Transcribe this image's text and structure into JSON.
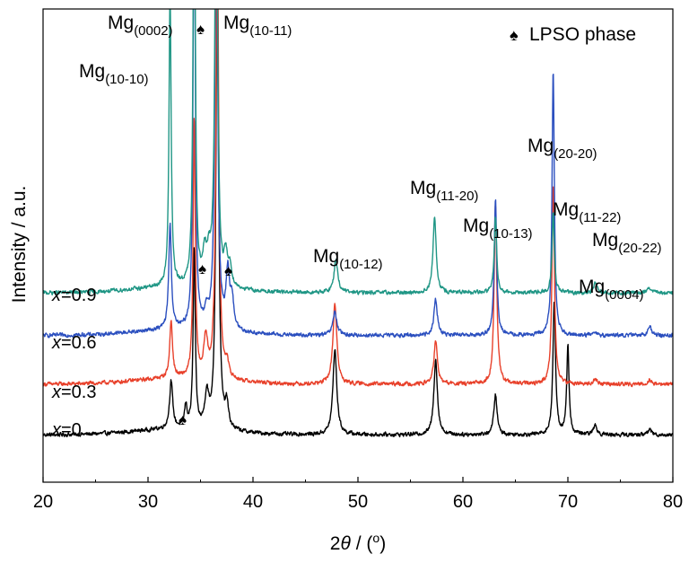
{
  "chart_data": {
    "type": "line",
    "title": "",
    "xlabel_prefix": "2",
    "xlabel_var": "θ",
    "xlabel_suffix": " / (",
    "xlabel_deg": "o",
    "xlabel_close": ")",
    "ylabel": "Intensity / a.u.",
    "xlim": [
      20,
      80
    ],
    "x_ticks": [
      "20",
      "30",
      "40",
      "50",
      "60",
      "70",
      "80"
    ],
    "y_ticks_shown": false,
    "legend": {
      "symbol": "♠",
      "text": "LPSO phase",
      "position": "top-right"
    },
    "series": [
      {
        "name": "x=0",
        "name_var": "x",
        "name_value": "=0",
        "color": "#000000",
        "baseline": 0.1,
        "peaks": [
          [
            32.2,
            0.1,
            0.18
          ],
          [
            33.6,
            0.045,
            0.15
          ],
          [
            34.4,
            0.38,
            0.12
          ],
          [
            35.6,
            0.07,
            0.22
          ],
          [
            36.6,
            1.0,
            0.15
          ],
          [
            37.5,
            0.05,
            0.18
          ],
          [
            47.8,
            0.18,
            0.22
          ],
          [
            57.4,
            0.16,
            0.2
          ],
          [
            63.1,
            0.085,
            0.18
          ],
          [
            68.7,
            0.28,
            0.15
          ],
          [
            70.0,
            0.19,
            0.13
          ],
          [
            72.6,
            0.02,
            0.2
          ],
          [
            77.8,
            0.012,
            0.2
          ]
        ]
      },
      {
        "name": "x=0.3",
        "name_var": "x",
        "name_value": "=0.3",
        "color": "#e8412b",
        "baseline": 0.207,
        "peaks": [
          [
            32.2,
            0.12,
            0.16
          ],
          [
            34.4,
            0.55,
            0.12
          ],
          [
            35.5,
            0.08,
            0.22
          ],
          [
            36.6,
            1.0,
            0.15
          ],
          [
            37.5,
            0.03,
            0.2
          ],
          [
            47.8,
            0.17,
            0.22
          ],
          [
            57.4,
            0.09,
            0.2
          ],
          [
            63.1,
            0.38,
            0.15
          ],
          [
            68.6,
            0.42,
            0.14
          ],
          [
            72.6,
            0.01,
            0.2
          ],
          [
            77.8,
            0.01,
            0.2
          ]
        ]
      },
      {
        "name": "x=0.6",
        "name_var": "x",
        "name_value": "=0.6",
        "color": "#2b4fbf",
        "baseline": 0.31,
        "peaks": [
          [
            32.1,
            0.22,
            0.15
          ],
          [
            34.4,
            1.0,
            0.12
          ],
          [
            35.6,
            0.03,
            0.22
          ],
          [
            36.5,
            1.0,
            0.15
          ],
          [
            37.6,
            0.12,
            0.2
          ],
          [
            38.0,
            0.06,
            0.2
          ],
          [
            47.8,
            0.05,
            0.22
          ],
          [
            57.4,
            0.075,
            0.2
          ],
          [
            63.1,
            0.29,
            0.14
          ],
          [
            68.6,
            0.56,
            0.13
          ],
          [
            72.6,
            0.008,
            0.2
          ],
          [
            77.8,
            0.02,
            0.2
          ]
        ]
      },
      {
        "name": "x=0.9",
        "name_var": "x",
        "name_value": "=0.9",
        "color": "#1f9685",
        "baseline": 0.4,
        "peaks": [
          [
            32.1,
            0.63,
            0.12
          ],
          [
            34.4,
            1.0,
            0.12
          ],
          [
            35.4,
            0.06,
            0.22
          ],
          [
            35.8,
            0.05,
            0.22
          ],
          [
            36.5,
            1.0,
            0.15
          ],
          [
            37.4,
            0.06,
            0.2
          ],
          [
            37.8,
            0.04,
            0.2
          ],
          [
            47.9,
            0.07,
            0.22
          ],
          [
            57.3,
            0.16,
            0.18
          ],
          [
            63.1,
            0.16,
            0.14
          ],
          [
            68.6,
            0.17,
            0.13
          ],
          [
            72.6,
            0.02,
            0.2
          ],
          [
            77.8,
            0.01,
            0.2
          ]
        ]
      }
    ],
    "annotations": {
      "planes": [
        {
          "base": "Mg",
          "sub": "(10-10)",
          "x": 32.1
        },
        {
          "base": "Mg",
          "sub": "(0002)",
          "x": 34.4
        },
        {
          "base": "Mg",
          "sub": "(10-11)",
          "x": 36.6
        },
        {
          "base": "Mg",
          "sub": "(10-12)",
          "x": 47.8
        },
        {
          "base": "Mg",
          "sub": "(11-20)",
          "x": 57.4
        },
        {
          "base": "Mg",
          "sub": "(10-13)",
          "x": 63.1
        },
        {
          "base": "Mg",
          "sub": "(11-22)",
          "x": 68.6
        },
        {
          "base": "Mg",
          "sub": "(20-20)",
          "x": 70.2
        },
        {
          "base": "Mg",
          "sub": "(0004)",
          "x": 72.5
        },
        {
          "base": "Mg",
          "sub": "(20-22)",
          "x": 74.0
        }
      ],
      "lpso_markers": [
        {
          "symbol": "♠",
          "x": 35.0
        },
        {
          "symbol": "♠",
          "x": 35.6
        },
        {
          "symbol": "♠",
          "x": 37.8
        },
        {
          "symbol": "♠",
          "x": 33.6
        }
      ]
    }
  }
}
